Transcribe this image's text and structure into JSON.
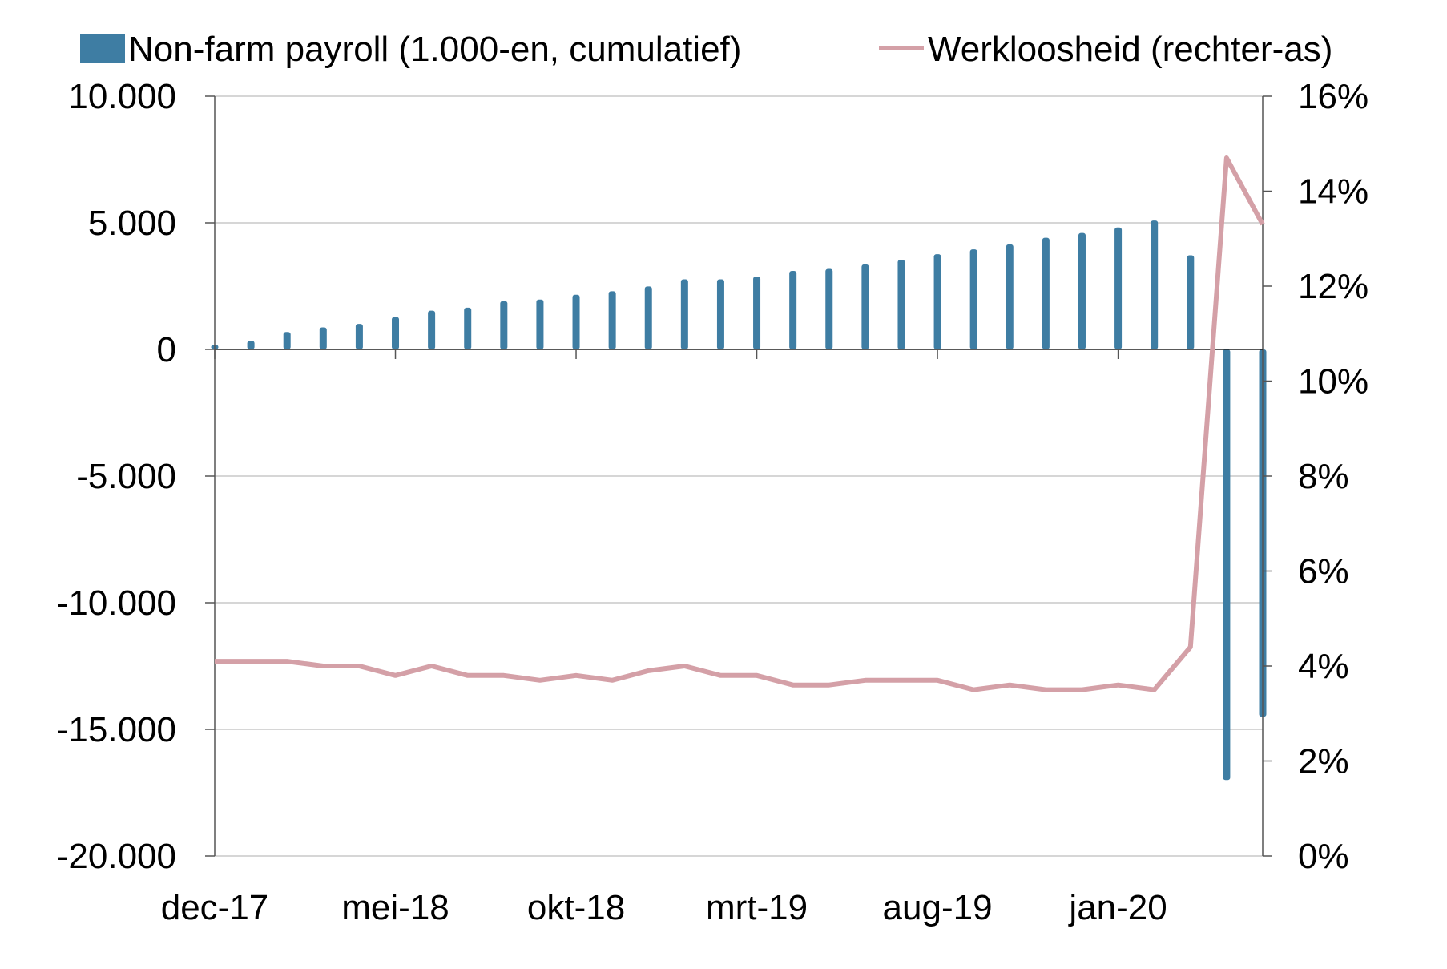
{
  "chart_data": {
    "type": "bar+line",
    "title": "",
    "legend": {
      "placement": "top",
      "entries": [
        {
          "label": "Non-farm payroll (1.000-en, cumulatief)",
          "mark": "bar",
          "color": "#3E7DA3"
        },
        {
          "label": "Werkloosheid (rechter-as)",
          "mark": "line",
          "color": "#D4A0A7"
        }
      ]
    },
    "x_tick_labels": [
      {
        "index": 0,
        "label": "dec-17"
      },
      {
        "index": 5,
        "label": "mei-18"
      },
      {
        "index": 10,
        "label": "okt-18"
      },
      {
        "index": 15,
        "label": "mrt-19"
      },
      {
        "index": 20,
        "label": "aug-19"
      },
      {
        "index": 25,
        "label": "jan-20"
      }
    ],
    "categories": [
      "dec-17",
      "jan-18",
      "feb-18",
      "mrt-18",
      "apr-18",
      "mei-18",
      "jun-18",
      "jul-18",
      "aug-18",
      "sep-18",
      "okt-18",
      "nov-18",
      "dec-18",
      "jan-19",
      "feb-19",
      "mrt-19",
      "apr-19",
      "mei-19",
      "jun-19",
      "jul-19",
      "aug-19",
      "sep-19",
      "okt-19",
      "nov-19",
      "dec-19",
      "jan-20",
      "feb-20",
      "mrt-20",
      "apr-20",
      "mei-20"
    ],
    "series": [
      {
        "name": "Non-farm payroll (1.000-en, cumulatief)",
        "type": "bar",
        "axis": "left",
        "values": [
          180,
          340,
          690,
          870,
          1010,
          1280,
          1530,
          1650,
          1910,
          1970,
          2160,
          2300,
          2490,
          2770,
          2770,
          2880,
          3100,
          3180,
          3360,
          3540,
          3760,
          3950,
          4150,
          4410,
          4600,
          4820,
          5090,
          3720,
          -17000,
          -14500
        ]
      },
      {
        "name": "Werkloosheid (rechter-as)",
        "type": "line",
        "axis": "right",
        "values": [
          4.1,
          4.1,
          4.1,
          4.0,
          4.0,
          3.8,
          4.0,
          3.8,
          3.8,
          3.7,
          3.8,
          3.7,
          3.9,
          4.0,
          3.8,
          3.8,
          3.6,
          3.6,
          3.7,
          3.7,
          3.7,
          3.5,
          3.6,
          3.5,
          3.5,
          3.6,
          3.5,
          4.4,
          14.7,
          13.3
        ]
      }
    ],
    "y_left": {
      "min": -20000,
      "max": 10000,
      "ticks": [
        10000,
        5000,
        0,
        -5000,
        -10000,
        -15000,
        -20000
      ],
      "tick_labels": [
        "10.000",
        "5.000",
        "0",
        "-5.000",
        "-10.000",
        "-15.000",
        "-20.000"
      ]
    },
    "y_right": {
      "min": 0,
      "max": 16,
      "ticks": [
        16,
        14,
        12,
        10,
        8,
        6,
        4,
        2,
        0
      ],
      "tick_labels": [
        "16%",
        "14%",
        "12%",
        "10%",
        "8%",
        "6%",
        "4%",
        "2%",
        "0%"
      ]
    },
    "grid": true,
    "colors": {
      "bar": "#3E7DA3",
      "line": "#D4A0A7",
      "grid": "#C8C8C8",
      "axis": "#555555"
    }
  }
}
